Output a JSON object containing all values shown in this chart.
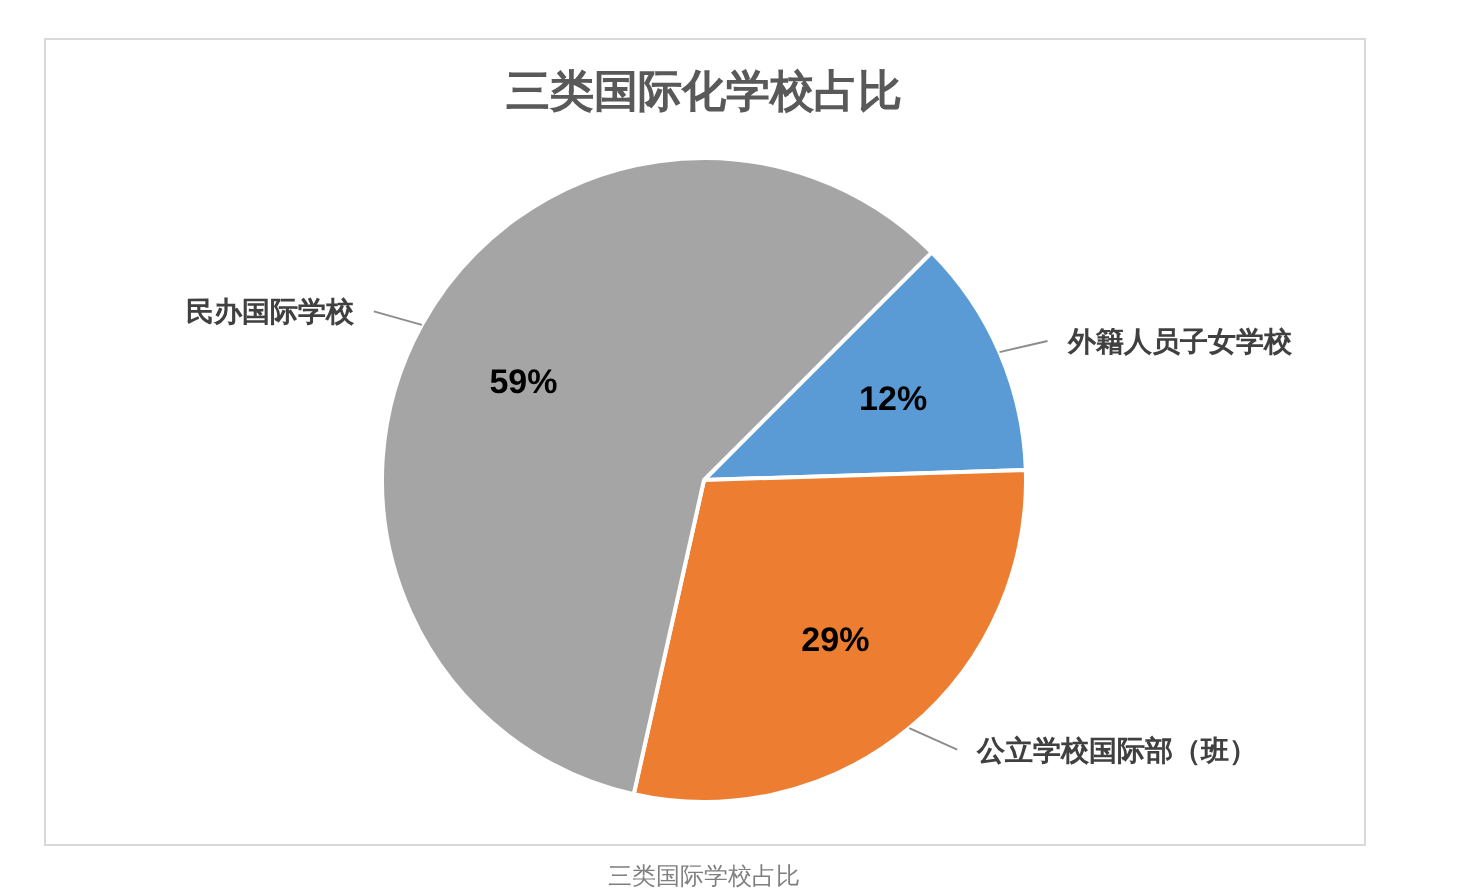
{
  "chart_data": {
    "type": "pie",
    "title": "三类国际化学校占比",
    "categories": [
      "外籍人员子女学校",
      "公立学校国际部（班）",
      "民办国际学校"
    ],
    "values": [
      12,
      29,
      59
    ],
    "colors": [
      "#5b9bd5",
      "#ed7d31",
      "#a5a5a5"
    ],
    "value_labels": [
      "12%",
      "29%",
      "59%"
    ],
    "annotations": [
      "三类国际学校占比"
    ]
  }
}
